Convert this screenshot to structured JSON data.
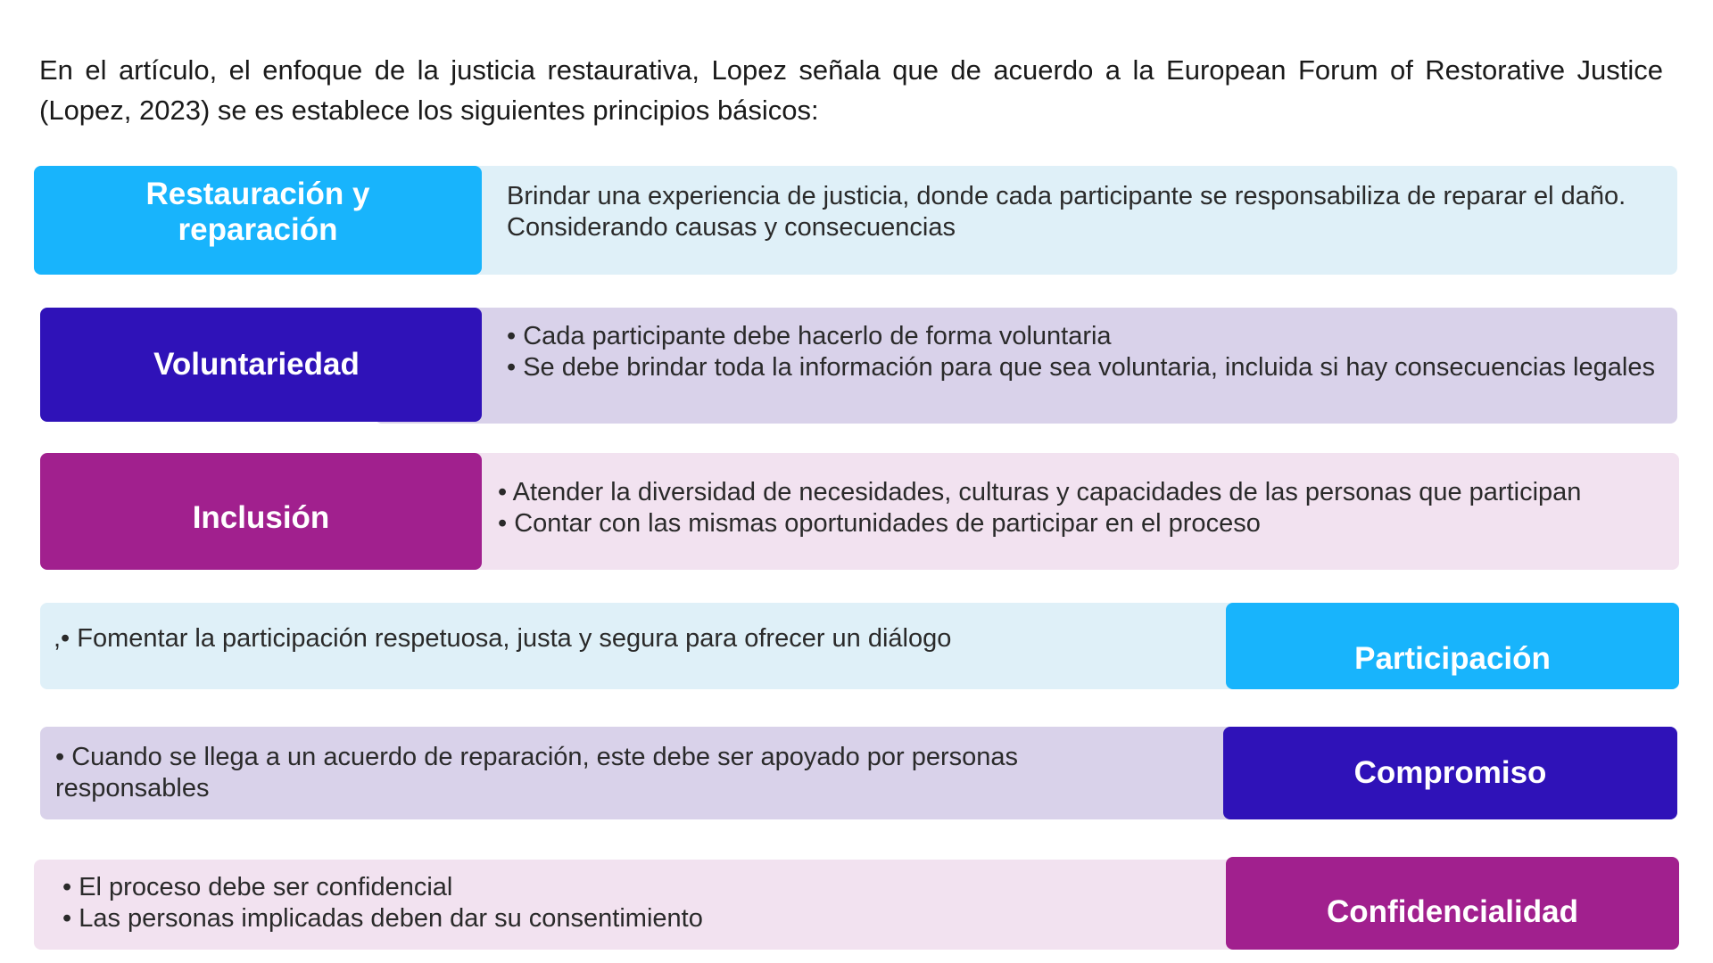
{
  "intro": "En el artículo, el enfoque de la justicia restaurativa, Lopez señala que de acuerdo a la European Forum of Restorative Justice (Lopez, 2023) se es establece los siguientes principios básicos:",
  "colors": {
    "blue": "#18b4fc",
    "indigo": "#2f12b8",
    "purple": "#a1208e",
    "panel_blue": "#dff0f8",
    "panel_lavender": "#d9d2ea",
    "panel_pink": "#f2e2f0"
  },
  "principles": [
    {
      "title": "Restauración y reparación",
      "lines": [
        "Brindar una experiencia de justicia, donde cada participante se responsabiliza de reparar el daño. Considerando causas y consecuencias"
      ]
    },
    {
      "title": "Voluntariedad",
      "lines": [
        "• Cada participante debe hacerlo de forma voluntaria",
        "• Se debe brindar toda la información para que sea voluntaria, incluida si hay consecuencias legales"
      ]
    },
    {
      "title": "Inclusión",
      "lines": [
        "• Atender la diversidad de necesidades, culturas y capacidades de las personas que participan",
        "• Contar con las mismas oportunidades de participar en el proceso"
      ]
    },
    {
      "title": "Participación",
      "lines": [
        ",• Fomentar la participación respetuosa, justa y segura para ofrecer un diálogo"
      ]
    },
    {
      "title": "Compromiso",
      "lines": [
        "• Cuando se llega a un acuerdo de reparación, este debe ser apoyado por personas responsables"
      ]
    },
    {
      "title": "Confidencialidad",
      "lines": [
        "• El proceso debe ser confidencial",
        "• Las personas implicadas deben dar su consentimiento"
      ]
    }
  ]
}
